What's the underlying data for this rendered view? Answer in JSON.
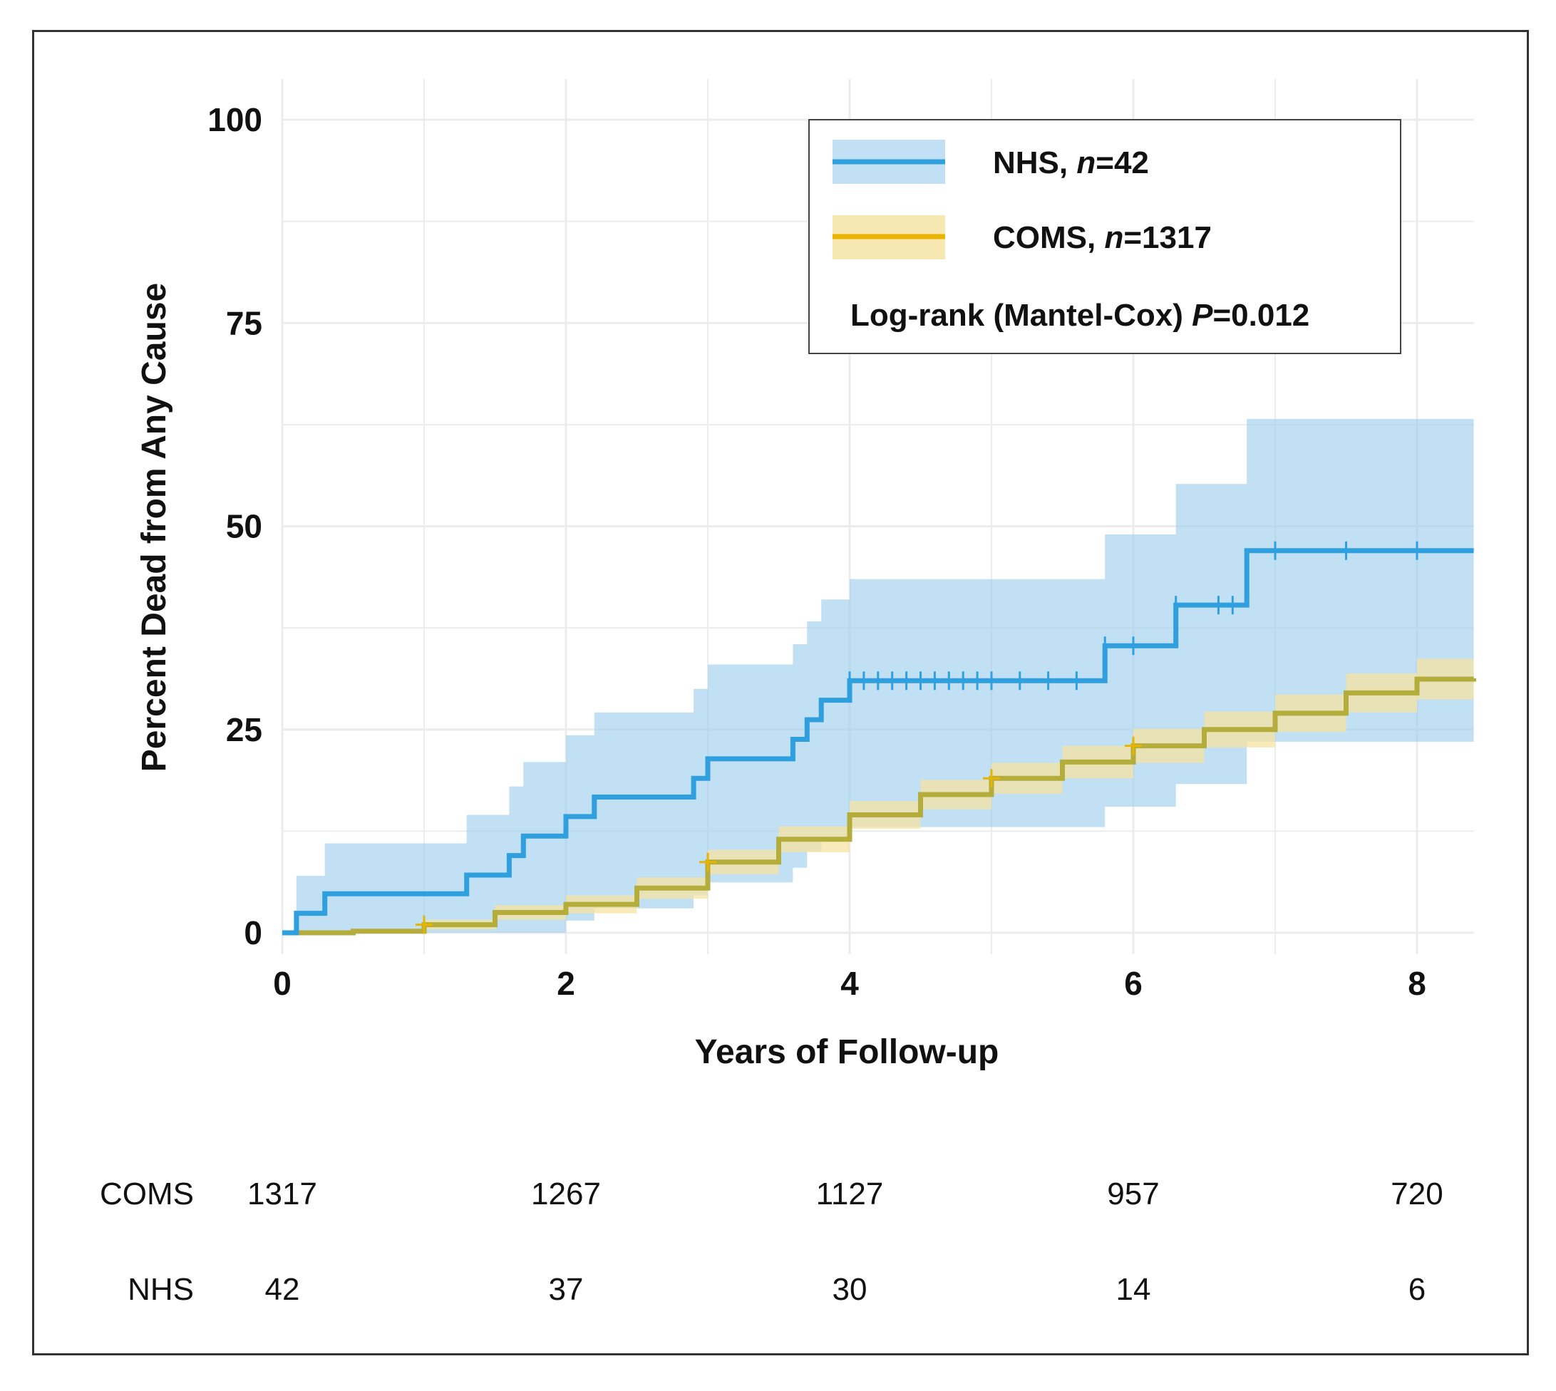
{
  "chart_data": {
    "type": "line",
    "subtype": "kaplan-meier cumulative incidence (step)",
    "xlabel": "Years of Follow-up",
    "ylabel": "Percent Dead from Any Cause",
    "xlim": [
      0,
      8.4
    ],
    "ylim": [
      0,
      100
    ],
    "xticks": [
      0,
      2,
      4,
      6,
      8
    ],
    "yticks": [
      0,
      25,
      50,
      75,
      100
    ],
    "grid": true,
    "legend_position": "top-right",
    "annotation": {
      "prefix": "Log-rank (Mantel-Cox) ",
      "p_label": "P",
      "p_value": "=0.012"
    },
    "series": [
      {
        "name": "NHS",
        "legend_prefix": "NHS, ",
        "legend_n": "=42",
        "color": "#2f9fde",
        "band_color": "#9fd0ee",
        "steps": [
          [
            0,
            0
          ],
          [
            0.1,
            2.4
          ],
          [
            0.3,
            4.8
          ],
          [
            1.3,
            7.1
          ],
          [
            1.6,
            9.5
          ],
          [
            1.7,
            11.9
          ],
          [
            2.0,
            14.3
          ],
          [
            2.2,
            16.7
          ],
          [
            2.9,
            19.0
          ],
          [
            3.0,
            21.4
          ],
          [
            3.6,
            23.8
          ],
          [
            3.7,
            26.2
          ],
          [
            3.8,
            28.6
          ],
          [
            4.0,
            31.0
          ],
          [
            5.8,
            35.3
          ],
          [
            6.3,
            40.3
          ],
          [
            6.8,
            47.0
          ],
          [
            8.4,
            47.0
          ]
        ],
        "ci_upper": [
          [
            0,
            0
          ],
          [
            0.1,
            7
          ],
          [
            0.3,
            11
          ],
          [
            1.3,
            14.5
          ],
          [
            1.6,
            18
          ],
          [
            1.7,
            21
          ],
          [
            2.0,
            24.3
          ],
          [
            2.2,
            27.1
          ],
          [
            2.9,
            30
          ],
          [
            3.0,
            33
          ],
          [
            3.6,
            35.5
          ],
          [
            3.7,
            38.3
          ],
          [
            3.8,
            41
          ],
          [
            4.0,
            43.5
          ],
          [
            5.8,
            49
          ],
          [
            6.3,
            55.2
          ],
          [
            6.8,
            63.2
          ],
          [
            8.4,
            63.2
          ]
        ],
        "ci_lower": [
          [
            0,
            0
          ],
          [
            1.7,
            0
          ],
          [
            2.0,
            1.5
          ],
          [
            2.2,
            3
          ],
          [
            2.9,
            4.6
          ],
          [
            3.0,
            6.2
          ],
          [
            3.6,
            8
          ],
          [
            3.7,
            10
          ],
          [
            3.8,
            11.5
          ],
          [
            4.0,
            13
          ],
          [
            5.8,
            15.5
          ],
          [
            6.3,
            18.3
          ],
          [
            6.8,
            20.6
          ],
          [
            6.8,
            23.5
          ],
          [
            8.4,
            23.5
          ]
        ],
        "censored": [
          4.0,
          4.1,
          4.2,
          4.3,
          4.4,
          4.5,
          4.6,
          4.7,
          4.8,
          4.9,
          5.0,
          5.2,
          5.4,
          5.6,
          5.8,
          6.0,
          6.3,
          6.6,
          6.7,
          7.0,
          7.5,
          8.0
        ]
      },
      {
        "name": "COMS",
        "legend_prefix": "COMS, ",
        "legend_n": "=1317",
        "color": "#e8b400",
        "band_color": "#f6e3a2",
        "steps": [
          [
            0,
            0
          ],
          [
            0.5,
            0.2
          ],
          [
            1.0,
            1.0
          ],
          [
            1.5,
            2.5
          ],
          [
            2.0,
            3.5
          ],
          [
            2.5,
            5.5
          ],
          [
            3.0,
            8.7
          ],
          [
            3.5,
            11.5
          ],
          [
            4.0,
            14.5
          ],
          [
            4.5,
            17.0
          ],
          [
            5.0,
            19.0
          ],
          [
            5.5,
            21.0
          ],
          [
            6.0,
            23.0
          ],
          [
            6.5,
            25.0
          ],
          [
            7.0,
            27.0
          ],
          [
            7.5,
            29.5
          ],
          [
            8.0,
            31.2
          ],
          [
            8.4,
            31.3
          ]
        ],
        "ci_half_width": [
          0,
          0.3,
          0.6,
          0.9,
          1.1,
          1.3,
          1.5,
          1.6,
          1.7,
          1.8,
          1.9,
          2.0,
          2.1,
          2.2,
          2.3,
          2.4,
          2.5,
          2.5
        ],
        "censored": [
          1,
          3,
          5,
          6
        ]
      }
    ],
    "risk_table": {
      "times": [
        0,
        2,
        4,
        6,
        8
      ],
      "rows": [
        {
          "label": "COMS",
          "color": "#e8b400",
          "values": [
            "1317",
            "1267",
            "1127",
            "957",
            "720"
          ]
        },
        {
          "label": "NHS",
          "color": "#2f9fde",
          "values": [
            "42",
            "37",
            "30",
            "14",
            "6"
          ]
        }
      ]
    }
  }
}
